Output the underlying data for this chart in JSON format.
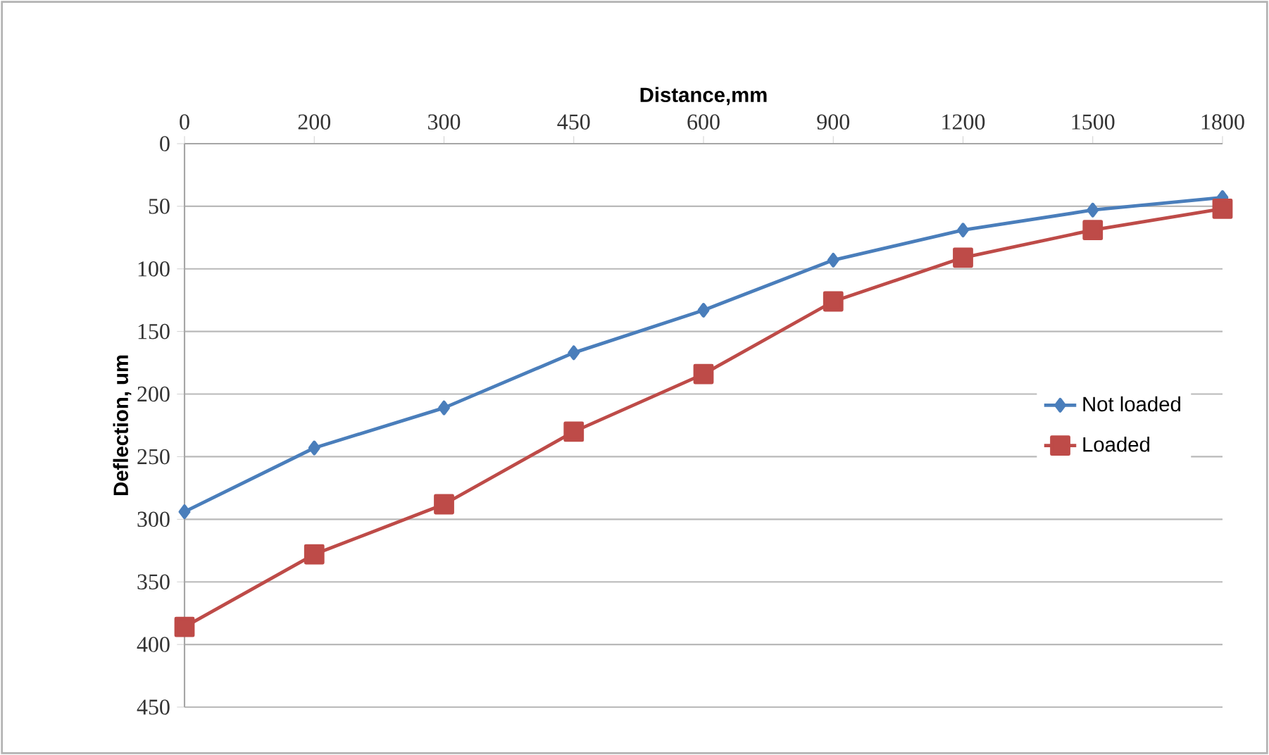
{
  "chart_data": {
    "type": "line",
    "xlabel": "Distance,mm",
    "ylabel": "Deflection, um",
    "categories": [
      "0",
      "200",
      "300",
      "450",
      "600",
      "900",
      "1200",
      "1500",
      "1800"
    ],
    "ylim": [
      450,
      0
    ],
    "yticks": [
      0,
      50,
      100,
      150,
      200,
      250,
      300,
      350,
      400,
      450
    ],
    "grid": "y",
    "legend": "right",
    "series": [
      {
        "name": "Not loaded",
        "color": "#4a7ebb",
        "marker": "diamond",
        "values": [
          294,
          243,
          211,
          167,
          133,
          93,
          69,
          53,
          43
        ]
      },
      {
        "name": "Loaded",
        "color": "#be4b48",
        "marker": "square",
        "values": [
          386,
          328,
          288,
          230,
          184,
          126,
          91,
          69,
          52
        ]
      }
    ]
  }
}
